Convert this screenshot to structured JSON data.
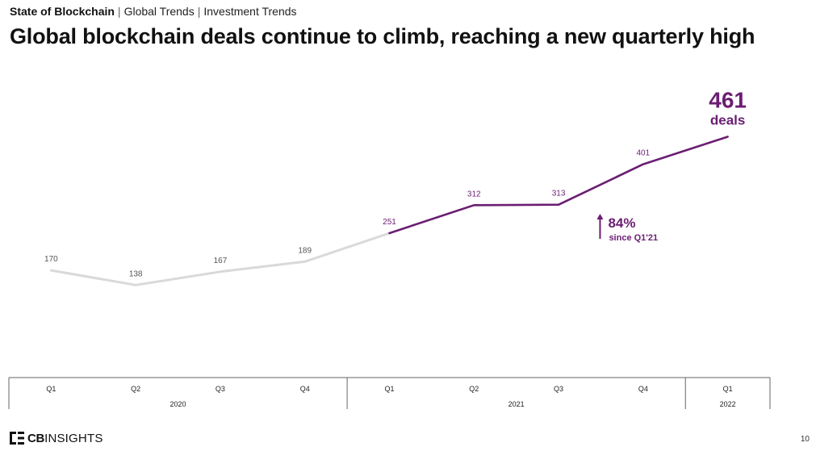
{
  "breadcrumb": {
    "report": "State of Blockchain",
    "section": "Global Trends",
    "subsection": "Investment Trends",
    "separator": "|"
  },
  "title": "Global blockchain deals continue to climb, reaching a new quarterly high",
  "chart_data": {
    "type": "line",
    "quarters": [
      "Q1",
      "Q2",
      "Q3",
      "Q4",
      "Q1",
      "Q2",
      "Q3",
      "Q4",
      "Q1"
    ],
    "years": [
      {
        "label": "2020",
        "quarters": 4
      },
      {
        "label": "2021",
        "quarters": 4
      },
      {
        "label": "2022",
        "quarters": 1
      }
    ],
    "values": [
      170,
      138,
      167,
      189,
      251,
      312,
      313,
      401,
      461
    ],
    "highlight_start_index": 4,
    "highlight_end": {
      "value": "461",
      "unit": "deals"
    },
    "growth_callout": {
      "value": "84%",
      "label": "since Q1'21"
    },
    "grid": false,
    "colors": {
      "muted": "#d9d9d9",
      "highlight": "#6b1e73",
      "muted_label": "#555555"
    }
  },
  "footer": {
    "logo_bold": "CB",
    "logo_text": "INSIGHTS",
    "page_number": "10"
  }
}
